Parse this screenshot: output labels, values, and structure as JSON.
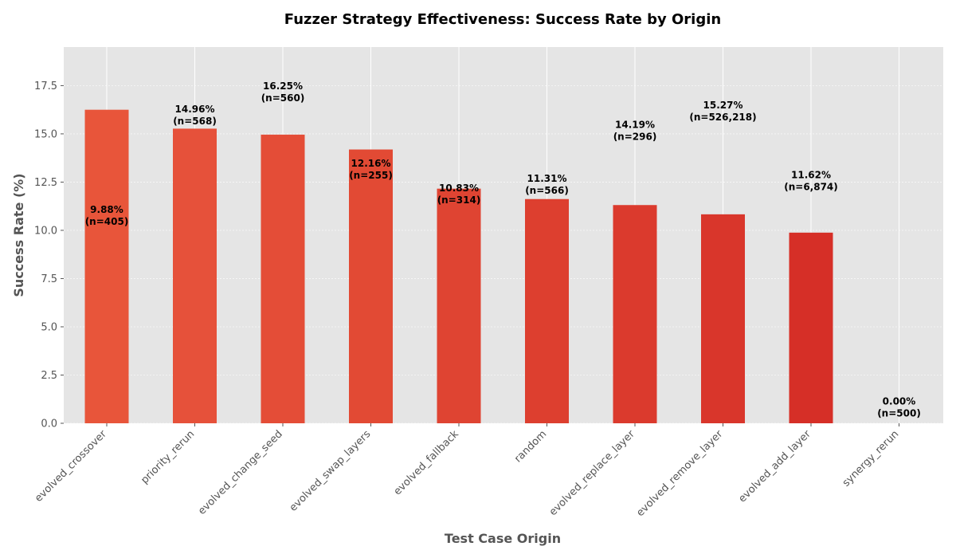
{
  "chart_data": {
    "type": "bar",
    "title": "Fuzzer Strategy Effectiveness: Success Rate by Origin",
    "xlabel": "Test Case Origin",
    "ylabel": "Success Rate (%)",
    "ylim": [
      0,
      19.5
    ],
    "yticks": [
      0.0,
      2.5,
      5.0,
      7.5,
      10.0,
      12.5,
      15.0,
      17.5
    ],
    "ytick_labels": [
      "0.0",
      "2.5",
      "5.0",
      "7.5",
      "10.0",
      "12.5",
      "15.0",
      "17.5"
    ],
    "grid": true,
    "categories": [
      "evolved_crossover",
      "priority_rerun",
      "evolved_change_seed",
      "evolved_swap_layers",
      "evolved_fallback",
      "random",
      "evolved_replace_layer",
      "evolved_remove_layer",
      "evolved_add_layer",
      "synergy_rerun"
    ],
    "values": [
      16.25,
      15.27,
      14.96,
      14.19,
      12.16,
      11.62,
      11.31,
      10.83,
      9.88,
      0.0
    ],
    "bar_colors": [
      "#e8553a",
      "#e6513a",
      "#e44d37",
      "#e24a34",
      "#df4432",
      "#dd3f2f",
      "#db3a2d",
      "#d9362b",
      "#d62f27",
      "#d62728"
    ],
    "annotations": [
      {
        "line1": "9.88%",
        "line2": "(n=405)",
        "y": 10.5
      },
      {
        "line1": "14.96%",
        "line2": "(n=568)",
        "y": 15.7
      },
      {
        "line1": "16.25%",
        "line2": "(n=560)",
        "y": 16.9
      },
      {
        "line1": "12.16%",
        "line2": "(n=255)",
        "y": 12.9
      },
      {
        "line1": "10.83%",
        "line2": "(n=314)",
        "y": 11.6
      },
      {
        "line1": "11.31%",
        "line2": "(n=566)",
        "y": 12.1
      },
      {
        "line1": "14.19%",
        "line2": "(n=296)",
        "y": 14.9
      },
      {
        "line1": "15.27%",
        "line2": "(n=526,218)",
        "y": 15.9
      },
      {
        "line1": "11.62%",
        "line2": "(n=6,874)",
        "y": 12.3
      },
      {
        "line1": "0.00%",
        "line2": "(n=500)",
        "y": 0.55
      }
    ]
  }
}
